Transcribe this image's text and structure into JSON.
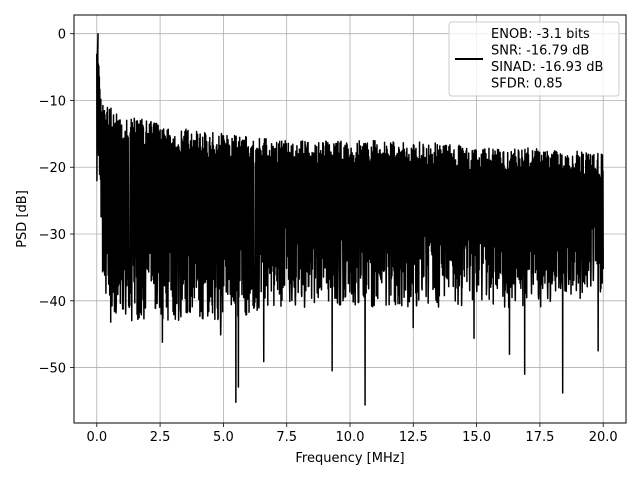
{
  "chart_data": {
    "type": "line",
    "title": "",
    "xlabel": "Frequency [MHz]",
    "ylabel": "PSD [dB]",
    "xlim": [
      -0.9,
      20.9
    ],
    "ylim": [
      -58.3,
      2.8
    ],
    "x_ticks": [
      0.0,
      2.5,
      5.0,
      7.5,
      10.0,
      12.5,
      15.0,
      17.5,
      20.0
    ],
    "x_tick_labels": [
      "0.0",
      "2.5",
      "5.0",
      "7.5",
      "10.0",
      "12.5",
      "15.0",
      "17.5",
      "20.0"
    ],
    "y_ticks": [
      0,
      -10,
      -20,
      -30,
      -40,
      -50
    ],
    "y_tick_labels": [
      "0",
      "−10",
      "−20",
      "−30",
      "−40",
      "−50"
    ],
    "grid": true,
    "legend_position": "upper right",
    "series": [
      {
        "name": "ENOB: -3.1 bits\nSNR: -16.79 dB\nSINAD: -16.93 dB\nSFDR: 0.85",
        "color": "#000000",
        "description_points": {
          "x": [
            0.0,
            0.02,
            0.05,
            0.08,
            0.1,
            0.15,
            0.2,
            0.3,
            0.5,
            1.0,
            2.0,
            3.0,
            5.0,
            7.5,
            10.0,
            12.5,
            15.0,
            17.5,
            20.0
          ],
          "upper": [
            -3,
            -1,
            0,
            -4,
            -6,
            -9,
            -10,
            -11,
            -11,
            -12,
            -13,
            -14,
            -15,
            -16,
            -16,
            -16,
            -17,
            -17,
            -18
          ],
          "lower": [
            -22,
            -22,
            -24,
            -24,
            -28,
            -30,
            -33,
            -36,
            -40,
            -40,
            -40,
            -40,
            -40,
            -38,
            -38,
            -38,
            -38,
            -38,
            -36
          ]
        },
        "deep_notches": [
          {
            "x": 0.55,
            "y": -43.2
          },
          {
            "x": 2.6,
            "y": -46.2
          },
          {
            "x": 4.9,
            "y": -45.1
          },
          {
            "x": 5.5,
            "y": -55.2
          },
          {
            "x": 5.6,
            "y": -52.9
          },
          {
            "x": 6.6,
            "y": -49.1
          },
          {
            "x": 9.3,
            "y": -50.5
          },
          {
            "x": 10.6,
            "y": -55.6
          },
          {
            "x": 12.5,
            "y": -44.0
          },
          {
            "x": 14.9,
            "y": -45.6
          },
          {
            "x": 16.3,
            "y": -48.0
          },
          {
            "x": 16.9,
            "y": -51.0
          },
          {
            "x": 18.4,
            "y": -53.8
          },
          {
            "x": 19.8,
            "y": -47.5
          }
        ]
      }
    ],
    "legend_lines": [
      "ENOB: -3.1 bits",
      "SNR: -16.79 dB",
      "SINAD: -16.93 dB",
      "SFDR: 0.85"
    ]
  }
}
